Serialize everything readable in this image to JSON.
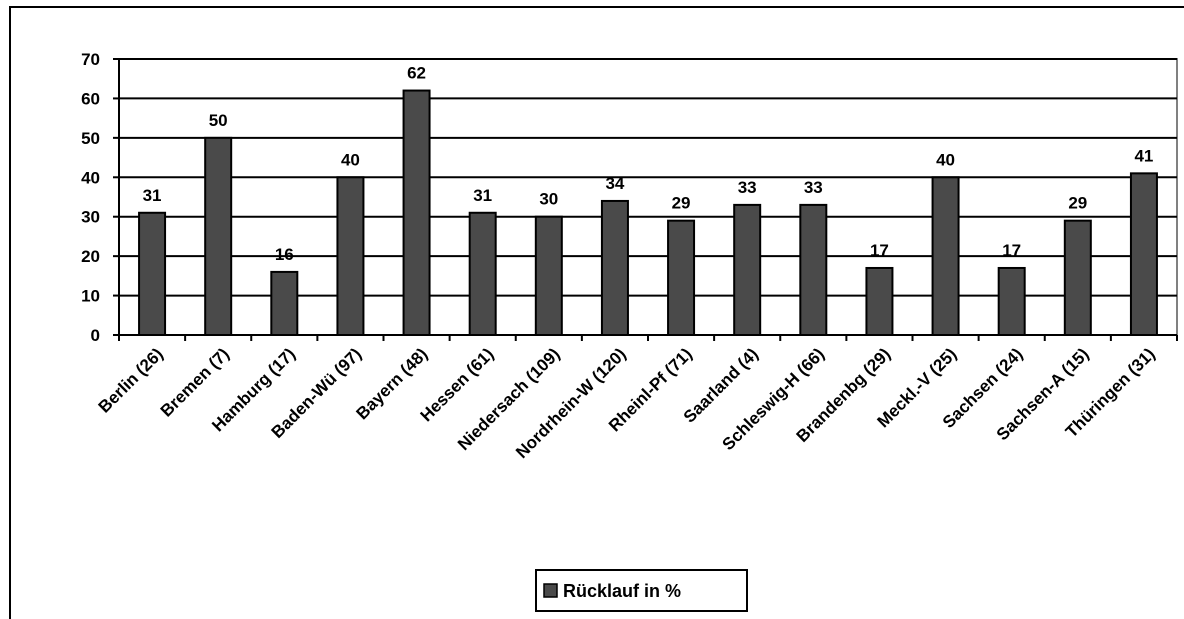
{
  "chart_data": {
    "type": "bar",
    "categories": [
      "Berlin (26)",
      "Bremen (7)",
      "Hamburg (17)",
      "Baden-Wü (97)",
      "Bayern (48)",
      "Hessen (61)",
      "Niedersach (109)",
      "Nordrhein-W (120)",
      "Rheinl-Pf (71)",
      "Saarland (4)",
      "Schleswig-H (66)",
      "Brandenbg (29)",
      "Meckl.-V (25)",
      "Sachsen (24)",
      "Sachsen-A (15)",
      "Thüringen (31)"
    ],
    "series": [
      {
        "name": "Rücklauf in %",
        "values": [
          31,
          50,
          16,
          40,
          62,
          31,
          30,
          34,
          29,
          33,
          33,
          17,
          40,
          17,
          29,
          41
        ]
      }
    ],
    "y_ticks": [
      "0",
      "10",
      "20",
      "30",
      "40",
      "50",
      "60",
      "70"
    ],
    "ylim": [
      0,
      70
    ],
    "title": "",
    "xlabel": "",
    "ylabel": "",
    "grid": true,
    "legend_position": "bottom-center",
    "bar_color": "#4a4a4a",
    "background_color": "#ffffff",
    "line_color": "#000000"
  }
}
